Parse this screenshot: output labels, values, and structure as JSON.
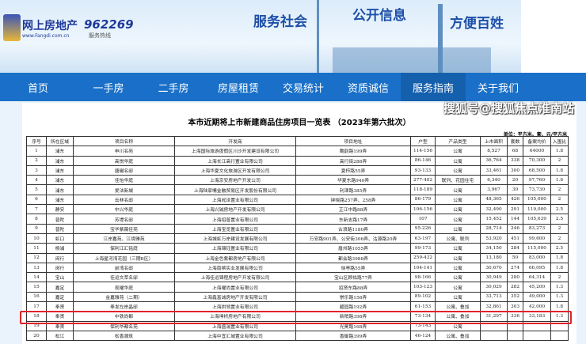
{
  "header": {
    "logo_text": "网上房地产",
    "logo_sub": "www.Fangdi.com.cn",
    "hotline": "962269",
    "hotline_sub": "服务热线",
    "slogans": [
      "服务社会",
      "公开信息",
      "方便百姓"
    ]
  },
  "nav": {
    "items": [
      "首页",
      "一手房",
      "二手房",
      "房屋租赁",
      "交易统计",
      "资质诚信",
      "服务指南",
      "关于我们"
    ],
    "active": 6
  },
  "doc": {
    "title": "本市近期将上市新建商品住房项目一览表 （2023年第六批次）",
    "unit": "单位：平方米、套、元/平方米",
    "columns": [
      "序号",
      "所在区域",
      "项目名称",
      "开发商",
      "项目地址",
      "户型",
      "产品类型",
      "上市面积",
      "套数",
      "备案均价",
      "入围比"
    ],
    "rows": [
      [
        "1",
        "浦东",
        "申川名苑",
        "上海国际旅游度假区川沙开发建设有限公司",
        "瞻韵路199弄",
        "114-156",
        "公寓",
        "8,527",
        "68",
        "64000",
        "1.8"
      ],
      [
        "2",
        "浦东",
        "高悦华庭",
        "上海长江高行置业有限公司",
        "高行街288弄",
        "86-146",
        "公寓",
        "36,764",
        "338",
        "70,300",
        "2"
      ],
      [
        "3",
        "浦东",
        "唐樾名邸",
        "上海华夏文化旅游区开发有限公司",
        "夏栉路55弄",
        "93-133",
        "公寓",
        "33,461",
        "300",
        "68,500",
        "1.8"
      ],
      [
        "4",
        "浦东",
        "佳怡华庭",
        "上海京安房地产开发公司",
        "华夏东路940弄",
        "277-402",
        "联列、花园住宅",
        "6,340",
        "20",
        "97,760",
        "1.8"
      ],
      [
        "5",
        "浦东",
        "爱法新城",
        "上海陆家嘴金融贸易区开发股份有限公司",
        "利津路385弄",
        "118-189",
        "公寓",
        "3,967",
        "30",
        "73,730",
        "2"
      ],
      [
        "6",
        "浦东",
        "云林名邸",
        "上海淞泽置业有限公司",
        "钟晓路257弄、258弄",
        "86-179",
        "公寓",
        "48,365",
        "426",
        "105,000",
        "2"
      ],
      [
        "7",
        "静安",
        "中兴华庭",
        "上海兴铖房地产开发有限公司",
        "芷江中路88弄",
        "106-156",
        "公寓",
        "32,490",
        "291",
        "119,000",
        "2.5"
      ],
      [
        "8",
        "普陀",
        "苏堤名邸",
        "上海招普置业有限公司",
        "东新支路17弄",
        "107",
        "公寓",
        "15,452",
        "144",
        "105,639",
        "2.5"
      ],
      [
        "9",
        "普陀",
        "宝华紫薇佳苑",
        "上海宝览置业有限公司",
        "古浪路1180弄",
        "95-226",
        "公寓",
        "28,714",
        "246",
        "83,273",
        "2"
      ],
      [
        "10",
        "虹口",
        "江岸嘉苑、江境雅苑",
        "上海城虹万岸建设发展有限公司",
        "万安路901弄、公安街306弄、沽源路20弄",
        "63-197",
        "公寓、联列",
        "53,920",
        "451",
        "99,600",
        "2"
      ],
      [
        "11",
        "杨浦",
        "保利江汇铭庭",
        "上海锦钰置业有限公司",
        "眉州路1055弄",
        "99-173",
        "公寓",
        "34,150",
        "284",
        "115,000",
        "2.5"
      ],
      [
        "12",
        "闵行",
        "上海星河湾花园（三期B区）",
        "上海金色紫都房地产有限公司",
        "都会路3988弄",
        "259-432",
        "公寓",
        "13,180",
        "50",
        "83,000",
        "1.8"
      ],
      [
        "13",
        "闵行",
        "前湾名邸",
        "上海南槟实业发展有限公司",
        "徐亭路55弄",
        "104-141",
        "公寓",
        "30,670",
        "274",
        "66,095",
        "1.8"
      ],
      [
        "14",
        "宝山",
        "佳运文萃名邸",
        "上海佳运锦程房地产开发有限公司",
        "宝山区顾佑路77弄",
        "98-166",
        "公寓",
        "30,949",
        "280",
        "64,314",
        "2"
      ],
      [
        "15",
        "嘉定",
        "观曜华庭",
        "上海曜尚置业有限公司",
        "招贤东路88弄",
        "103-123",
        "公寓",
        "30,029",
        "282",
        "45,200",
        "1.3"
      ],
      [
        "16",
        "嘉定",
        "金嘉雅苑（二期）",
        "上海鑫富诚房地产开发有限公司",
        "崇乐路158弄",
        "89-102",
        "公寓",
        "33,713",
        "352",
        "49,000",
        "1.3"
      ],
      [
        "17",
        "奉贤",
        "奉发左岸晶邸",
        "上海拱领置业有限公司",
        "碧园路192弄",
        "61-153",
        "公寓、叠加",
        "32,861",
        "303",
        "42,000",
        "1.8"
      ],
      [
        "18",
        "奉贤",
        "中铁尚都",
        "上海坤桥房地产有限公司",
        "新稍路398弄",
        "73-134",
        "公寓、叠加",
        "31,297",
        "336",
        "33,183",
        "1.3"
      ],
      [
        "19",
        "奉贤",
        "保利华都名苑",
        "上海盛湍置业有限公司",
        "光昊路168弄",
        "73-143",
        "公寓",
        "",
        "",
        "",
        ""
      ],
      [
        "20",
        "松江",
        "松香源筑",
        "上海中宜汇城置业有限公司",
        "香御路399弄",
        "46-124",
        "公寓、叠加",
        "",
        "",
        "",
        ""
      ]
    ],
    "highlighted_row": 18
  },
  "watermark": "搜狐号@搜狐焦点淮南站",
  "colors": {
    "nav": "#1a70c8",
    "nav_active": "#1560ad",
    "highlight": "#e0242a"
  }
}
